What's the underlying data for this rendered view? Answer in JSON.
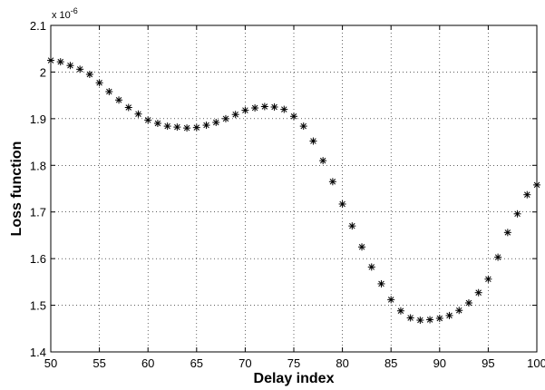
{
  "chart_data": {
    "type": "scatter",
    "title": "",
    "xlabel": "Delay index",
    "ylabel": "Loss function",
    "y_multiplier_label": "x 10",
    "y_multiplier_exponent": "-6",
    "xlim": [
      50,
      100
    ],
    "ylim": [
      1.4,
      2.1
    ],
    "xticks": [
      "50",
      "55",
      "60",
      "65",
      "70",
      "75",
      "80",
      "85",
      "90",
      "95",
      "100"
    ],
    "yticks": [
      "1.4",
      "1.5",
      "1.6",
      "1.7",
      "1.8",
      "1.9",
      "2",
      "2.1"
    ],
    "grid": true,
    "marker": "asterisk",
    "color": "#000000",
    "series": [
      {
        "x": [
          50,
          51,
          52,
          53,
          54,
          55,
          56,
          57,
          58,
          59,
          60,
          61,
          62,
          63,
          64,
          65,
          66,
          67,
          68,
          69,
          70,
          71,
          72,
          73,
          74,
          75,
          76,
          77,
          78,
          79,
          80,
          81,
          82,
          83,
          84,
          85,
          86,
          87,
          88,
          89,
          90,
          91,
          92,
          93,
          94,
          95,
          96,
          97,
          98,
          99,
          100
        ],
        "y": [
          2.025,
          2.022,
          2.014,
          2.006,
          1.995,
          1.977,
          1.958,
          1.94,
          1.924,
          1.91,
          1.897,
          1.89,
          1.884,
          1.882,
          1.88,
          1.881,
          1.886,
          1.892,
          1.9,
          1.909,
          1.918,
          1.923,
          1.926,
          1.925,
          1.92,
          1.905,
          1.884,
          1.852,
          1.81,
          1.765,
          1.717,
          1.67,
          1.625,
          1.582,
          1.546,
          1.512,
          1.488,
          1.473,
          1.468,
          1.469,
          1.472,
          1.478,
          1.489,
          1.505,
          1.527,
          1.556,
          1.603,
          1.656,
          1.696,
          1.737,
          1.758
        ]
      }
    ]
  }
}
